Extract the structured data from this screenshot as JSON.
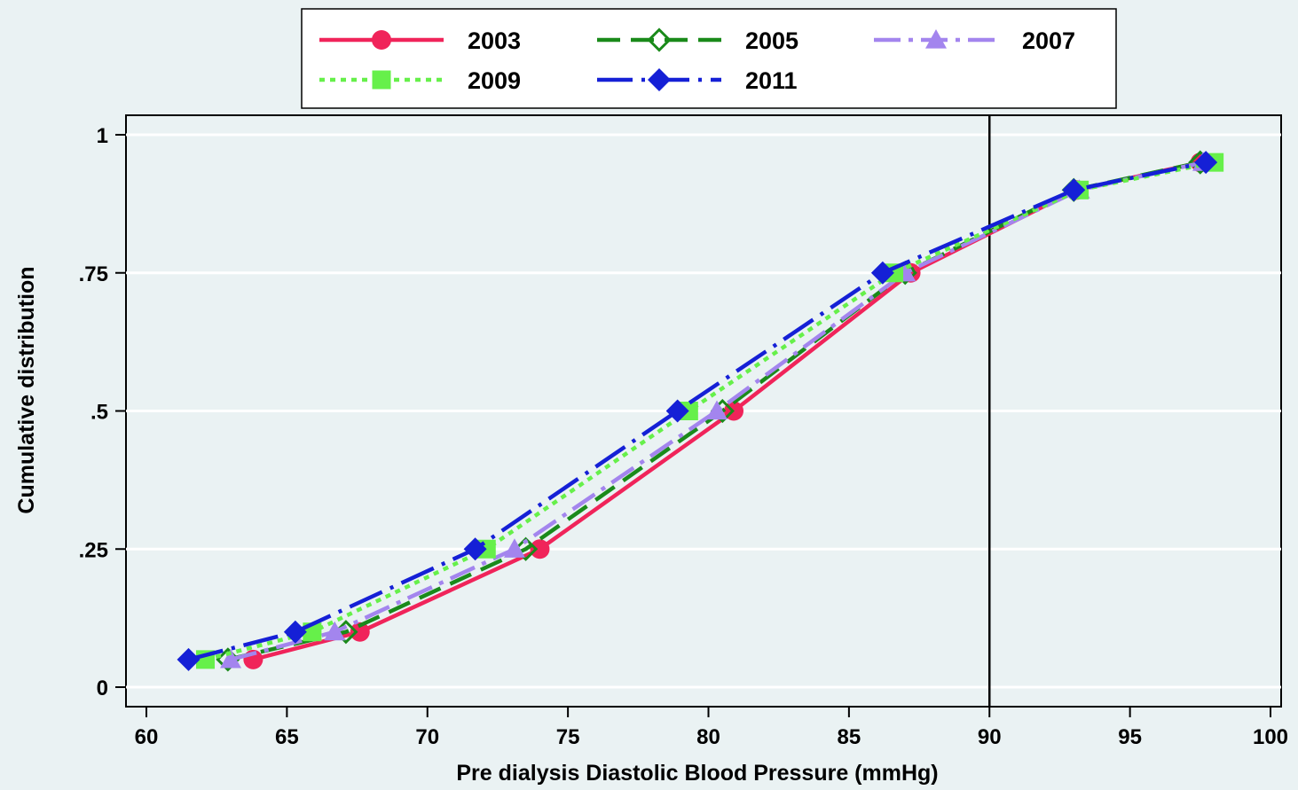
{
  "chart_data": {
    "type": "line",
    "title": "",
    "xlabel": "Pre dialysis Diastolic Blood Pressure (mmHg)",
    "ylabel": "Cumulative distribution",
    "xlim": [
      60,
      100
    ],
    "ylim": [
      0,
      1
    ],
    "x_ticks": [
      60,
      65,
      70,
      75,
      80,
      85,
      90,
      95,
      100
    ],
    "y_ticks": [
      {
        "value": 0,
        "label": "0"
      },
      {
        "value": 0.25,
        "label": ".25"
      },
      {
        "value": 0.5,
        "label": ".5"
      },
      {
        "value": 0.75,
        "label": ".75"
      },
      {
        "value": 1,
        "label": "1"
      }
    ],
    "grid": "horizontal",
    "reference_line_x": 90,
    "legend_position": "top",
    "series": [
      {
        "name": "2003",
        "color": "#f0245a",
        "marker": "circle",
        "dash": "solid",
        "points": [
          [
            63.8,
            0.05
          ],
          [
            67.6,
            0.1
          ],
          [
            74.0,
            0.25
          ],
          [
            80.9,
            0.5
          ],
          [
            87.2,
            0.75
          ],
          [
            93.1,
            0.9
          ],
          [
            97.5,
            0.95
          ]
        ]
      },
      {
        "name": "2005",
        "color": "#1a8a1a",
        "marker": "diamond-hollow",
        "dash": "dash",
        "points": [
          [
            62.9,
            0.05
          ],
          [
            67.1,
            0.1
          ],
          [
            73.5,
            0.25
          ],
          [
            80.5,
            0.5
          ],
          [
            87.0,
            0.75
          ],
          [
            93.0,
            0.9
          ],
          [
            97.5,
            0.95
          ]
        ]
      },
      {
        "name": "2007",
        "color": "#a385ee",
        "marker": "triangle",
        "dash": "dashdot",
        "points": [
          [
            63.0,
            0.05
          ],
          [
            66.7,
            0.1
          ],
          [
            73.1,
            0.25
          ],
          [
            80.3,
            0.5
          ],
          [
            87.0,
            0.75
          ],
          [
            93.2,
            0.9
          ],
          [
            97.6,
            0.95
          ]
        ]
      },
      {
        "name": "2009",
        "color": "#66f04a",
        "marker": "square",
        "dash": "dot",
        "points": [
          [
            62.1,
            0.05
          ],
          [
            65.9,
            0.1
          ],
          [
            72.1,
            0.25
          ],
          [
            79.3,
            0.5
          ],
          [
            86.6,
            0.75
          ],
          [
            93.2,
            0.9
          ],
          [
            98.0,
            0.95
          ]
        ]
      },
      {
        "name": "2011",
        "color": "#1520d6",
        "marker": "diamond",
        "dash": "longdash",
        "points": [
          [
            61.5,
            0.05
          ],
          [
            65.3,
            0.1
          ],
          [
            71.7,
            0.25
          ],
          [
            78.9,
            0.5
          ],
          [
            86.2,
            0.75
          ],
          [
            93.0,
            0.9
          ],
          [
            97.7,
            0.95
          ]
        ]
      }
    ]
  }
}
